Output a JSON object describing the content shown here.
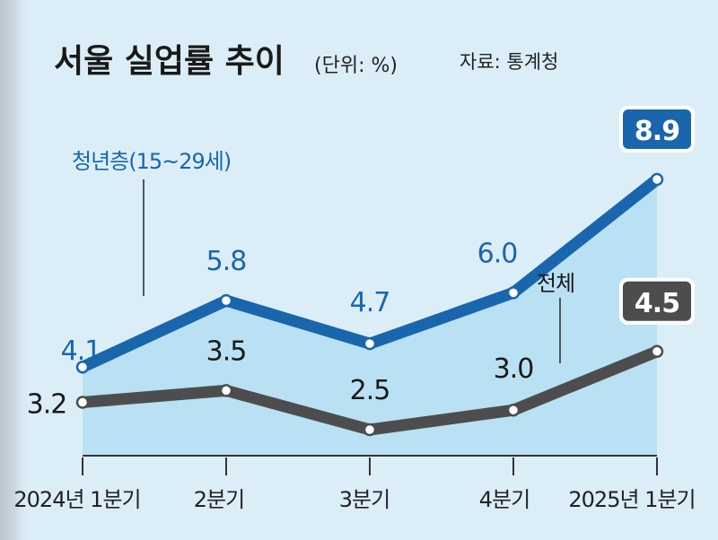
{
  "chart_data": {
    "type": "line",
    "title": "서울 실업률 추이",
    "unit": "(단위: %)",
    "source": "자료: 통계청",
    "categories": [
      "2024년 1분기",
      "2분기",
      "3분기",
      "4분기",
      "2025년 1분기"
    ],
    "series": [
      {
        "name": "청년층(15~29세)",
        "color": "#1a66ad",
        "values": [
          4.1,
          5.8,
          4.7,
          6.0,
          8.9
        ],
        "labels": [
          "4.1",
          "5.8",
          "4.7",
          "6.0",
          "8.9"
        ]
      },
      {
        "name": "전체",
        "color": "#4d4d4f",
        "values": [
          3.2,
          3.5,
          2.5,
          3.0,
          4.5
        ],
        "labels": [
          "3.2",
          "3.5",
          "2.5",
          "3.0",
          "4.5"
        ]
      }
    ],
    "grid": false,
    "fill_under_first_series": true
  }
}
